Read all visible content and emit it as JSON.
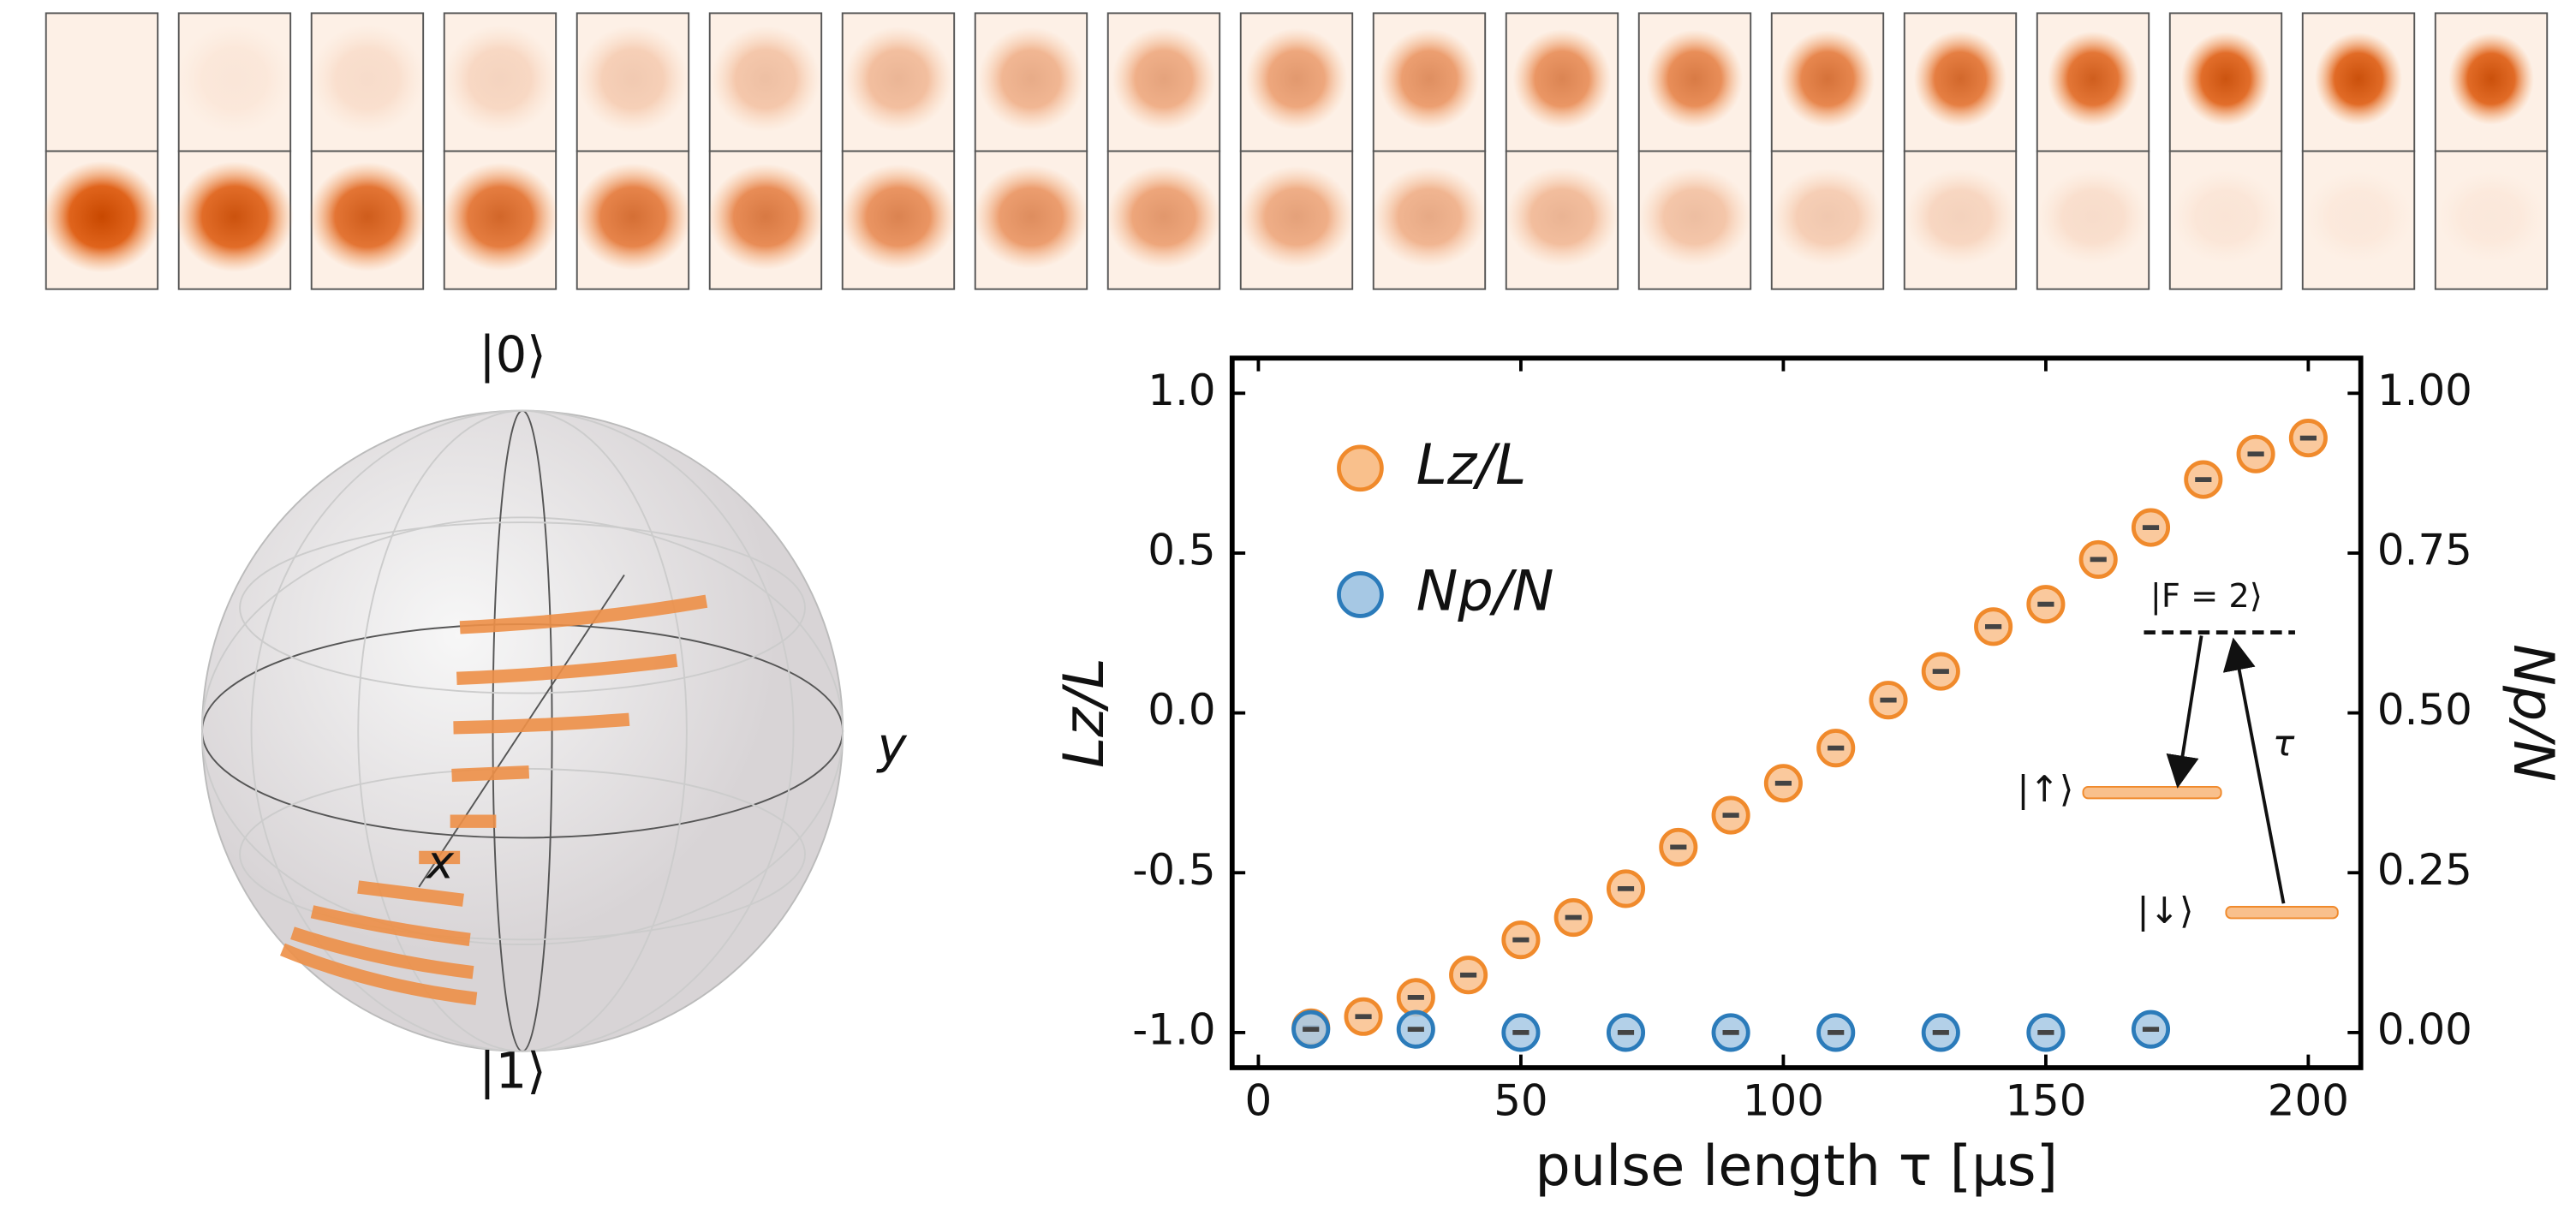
{
  "chart_data": {
    "type": "scatter",
    "xlabel": "pulse length τ [µs]",
    "ylabel": "Lz/L",
    "y2label": "Np/N",
    "xlim": [
      -5,
      210
    ],
    "xticks": [
      0,
      50,
      100,
      150,
      200
    ],
    "ylim": [
      -1.11,
      1.11
    ],
    "yticks": [
      {
        "value": -1.0,
        "label": "-1.0"
      },
      {
        "value": -0.5,
        "label": "-0.5"
      },
      {
        "value": 0.0,
        "label": "0.0"
      },
      {
        "value": 0.5,
        "label": "0.5"
      },
      {
        "value": 1.0,
        "label": "1.0"
      }
    ],
    "y2lim": [
      -0.055,
      1.055
    ],
    "y2ticks": [
      {
        "value": 0.0,
        "label": "0.00"
      },
      {
        "value": 0.25,
        "label": "0.25"
      },
      {
        "value": 0.5,
        "label": "0.50"
      },
      {
        "value": 0.75,
        "label": "0.75"
      },
      {
        "value": 1.0,
        "label": "1.00"
      }
    ],
    "series": [
      {
        "name": "Lz/L",
        "color": "#f08a2c",
        "fill": "#f9c08c",
        "x": [
          10,
          20,
          30,
          40,
          50,
          60,
          70,
          80,
          90,
          100,
          110,
          120,
          130,
          140,
          150,
          160,
          170,
          180,
          190,
          200
        ],
        "values": [
          -0.985,
          -0.95,
          -0.89,
          -0.82,
          -0.71,
          -0.64,
          -0.55,
          -0.42,
          -0.32,
          -0.22,
          -0.11,
          0.04,
          0.13,
          0.27,
          0.34,
          0.48,
          0.58,
          0.73,
          0.81,
          0.86
        ]
      },
      {
        "name": "Np/N",
        "color": "#2b7bba",
        "fill": "#a6c8e4",
        "axis": "y2",
        "x": [
          10,
          30,
          50,
          70,
          90,
          110,
          130,
          150,
          170
        ],
        "values": [
          0.005,
          0.005,
          0.0,
          0.0,
          0.0,
          0.0,
          0.0,
          0.0,
          0.005
        ]
      }
    ]
  },
  "sphere": {
    "top": "|0⟩",
    "bottom": "|1⟩",
    "x_axis": "x",
    "y_axis": "y"
  },
  "inset": {
    "excited": "|F = 2⟩",
    "up": "|↑⟩",
    "down": "|↓⟩",
    "pulse": "τ"
  }
}
